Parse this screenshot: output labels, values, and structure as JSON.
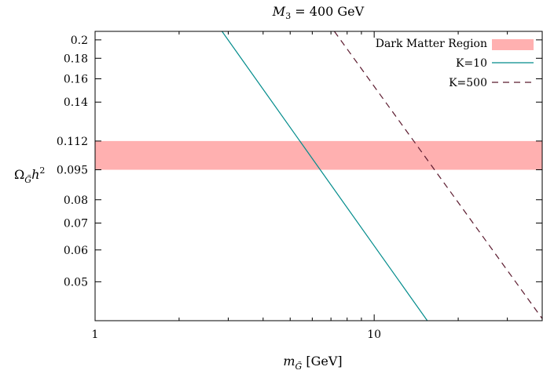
{
  "chart_data": {
    "type": "line",
    "title": "M₃ = 400 GeV",
    "xlabel": "m_G̃ [GeV]",
    "ylabel": "Ω_G̃ h²",
    "x_scale": "log",
    "y_scale": "log",
    "xlim": [
      1,
      40
    ],
    "ylim": [
      0.04,
      0.21
    ],
    "x_ticks": [
      {
        "value": 1,
        "label": "1"
      },
      {
        "value": 10,
        "label": "10"
      }
    ],
    "y_ticks": [
      {
        "value": 0.2,
        "label": "0.2"
      },
      {
        "value": 0.18,
        "label": "0.18"
      },
      {
        "value": 0.16,
        "label": "0.16"
      },
      {
        "value": 0.14,
        "label": "0.14"
      },
      {
        "value": 0.112,
        "label": "0.112"
      },
      {
        "value": 0.095,
        "label": "0.095"
      },
      {
        "value": 0.08,
        "label": "0.08"
      },
      {
        "value": 0.07,
        "label": "0.07"
      },
      {
        "value": 0.06,
        "label": "0.06"
      },
      {
        "value": 0.05,
        "label": "0.05"
      }
    ],
    "band": {
      "name": "Dark Matter Region",
      "y_range": [
        0.095,
        0.112
      ],
      "color": "#ffb0b0"
    },
    "series": [
      {
        "name": "K=10",
        "style": "solid",
        "color": "#008b8b",
        "x": [
          2.85,
          15.5
        ],
        "y": [
          0.21,
          0.04
        ]
      },
      {
        "name": "K=500",
        "style": "dashed",
        "color": "#5b1a2e",
        "x": [
          7.2,
          40.5
        ],
        "y": [
          0.21,
          0.04
        ]
      }
    ],
    "grid": false,
    "legend_position": "top-right"
  }
}
